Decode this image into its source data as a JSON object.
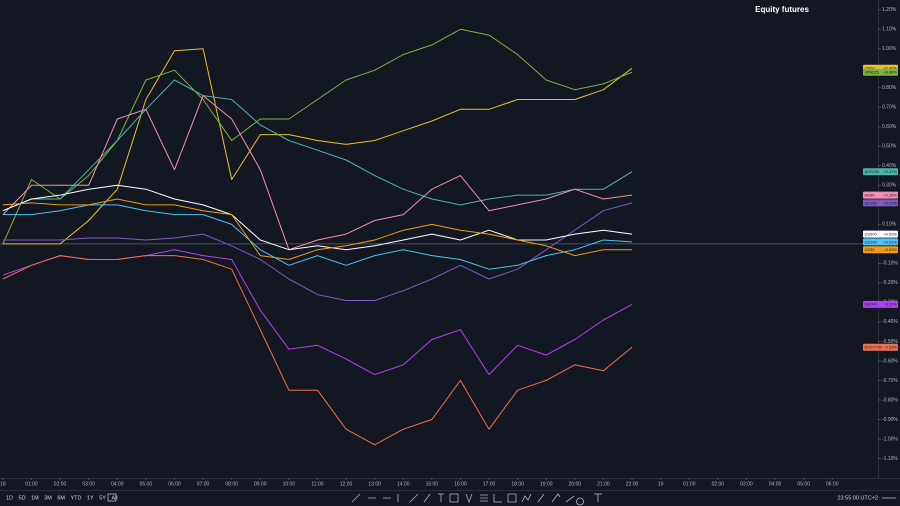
{
  "chart_data": {
    "type": "line",
    "title": "Equity futures",
    "x": [
      0,
      1,
      2,
      3,
      4,
      5,
      6,
      7,
      8,
      9,
      10,
      11,
      12,
      13,
      14,
      15,
      16,
      17,
      18,
      19,
      20,
      21,
      22
    ],
    "xlim": [
      -0.1,
      30.6
    ],
    "xticks": [
      {
        "value": 0,
        "label": "18"
      },
      {
        "value": 1,
        "label": "01:00"
      },
      {
        "value": 2,
        "label": "02:00"
      },
      {
        "value": 3,
        "label": "03:00"
      },
      {
        "value": 4,
        "label": "04:00"
      },
      {
        "value": 5,
        "label": "05:00"
      },
      {
        "value": 6,
        "label": "06:00"
      },
      {
        "value": 7,
        "label": "07:00"
      },
      {
        "value": 8,
        "label": "08:00"
      },
      {
        "value": 9,
        "label": "09:00"
      },
      {
        "value": 10,
        "label": "10:00"
      },
      {
        "value": 11,
        "label": "11:00"
      },
      {
        "value": 12,
        "label": "12:00"
      },
      {
        "value": 13,
        "label": "13:00"
      },
      {
        "value": 14,
        "label": "14:00"
      },
      {
        "value": 15,
        "label": "15:00"
      },
      {
        "value": 16,
        "label": "16:00"
      },
      {
        "value": 17,
        "label": "17:00"
      },
      {
        "value": 18,
        "label": "18:00"
      },
      {
        "value": 19,
        "label": "19:00"
      },
      {
        "value": 20,
        "label": "20:00"
      },
      {
        "value": 21,
        "label": "21:00"
      },
      {
        "value": 22,
        "label": "22:00"
      },
      {
        "value": 23,
        "label": "19"
      },
      {
        "value": 24,
        "label": "01:00"
      },
      {
        "value": 25,
        "label": "02:00"
      },
      {
        "value": 26,
        "label": "03:00"
      },
      {
        "value": 27,
        "label": "04:00"
      },
      {
        "value": 28,
        "label": "05:00"
      },
      {
        "value": 29,
        "label": "06:00"
      }
    ],
    "ylim": [
      -1.2,
      1.25
    ],
    "yticks": [
      {
        "value": 1.2,
        "label": "1.20%"
      },
      {
        "value": 1.1,
        "label": "1.10%"
      },
      {
        "value": 1.0,
        "label": "1.00%"
      },
      {
        "value": 0.9,
        "label": "0.90%"
      },
      {
        "value": 0.8,
        "label": "0.80%"
      },
      {
        "value": 0.7,
        "label": "0.70%"
      },
      {
        "value": 0.6,
        "label": "0.60%"
      },
      {
        "value": 0.5,
        "label": "0.50%"
      },
      {
        "value": 0.4,
        "label": "0.40%"
      },
      {
        "value": 0.3,
        "label": "0.30%"
      },
      {
        "value": 0.2,
        "label": "0.20%"
      },
      {
        "value": 0.1,
        "label": "0.10%"
      },
      {
        "value": 0,
        "label": "0.00%"
      },
      {
        "value": -0.1,
        "label": "-0.10%"
      },
      {
        "value": -0.2,
        "label": "-0.20%"
      },
      {
        "value": -0.3,
        "label": "-0.30%"
      },
      {
        "value": -0.4,
        "label": "-0.40%"
      },
      {
        "value": -0.5,
        "label": "-0.50%"
      },
      {
        "value": -0.6,
        "label": "-0.60%"
      },
      {
        "value": -0.7,
        "label": "-0.70%"
      },
      {
        "value": -0.8,
        "label": "-0.80%"
      },
      {
        "value": -0.9,
        "label": "-0.90%"
      },
      {
        "value": -1.0,
        "label": "-1.00%"
      },
      {
        "value": -1.1,
        "label": "-1.10%"
      }
    ],
    "zero_line": true,
    "series": [
      {
        "name": "CN50",
        "color": "#e8c22c",
        "values": [
          0,
          0,
          0,
          0.12,
          0.28,
          0.74,
          0.99,
          1.0,
          0.33,
          0.56,
          0.56,
          0.53,
          0.51,
          0.53,
          0.58,
          0.63,
          0.69,
          0.69,
          0.74,
          0.74,
          0.74,
          0.79,
          0.9
        ],
        "value_labels": [
          null,
          null,
          null,
          null,
          null,
          null,
          null,
          null,
          null,
          null,
          null,
          null,
          null,
          null,
          null,
          null,
          null,
          null,
          null,
          null,
          null,
          null,
          "+0.90%"
        ]
      },
      {
        "name": "JPN225",
        "color": "#7cb342",
        "values": [
          0,
          0.33,
          0.23,
          0.35,
          0.53,
          0.84,
          0.89,
          0.74,
          0.53,
          0.64,
          0.64,
          0.74,
          0.84,
          0.89,
          0.97,
          1.02,
          1.1,
          1.07,
          0.97,
          0.84,
          0.79,
          0.82,
          0.88
        ],
        "value_labels": [
          null,
          null,
          null,
          null,
          null,
          null,
          null,
          null,
          null,
          null,
          null,
          null,
          null,
          null,
          null,
          null,
          null,
          null,
          null,
          null,
          null,
          null,
          "+0.88%"
        ]
      },
      {
        "name": "AUS200",
        "color": "#4db6ac",
        "values": [
          0.17,
          0.23,
          0.23,
          0.38,
          0.53,
          0.69,
          0.84,
          0.76,
          0.74,
          0.61,
          0.53,
          0.48,
          0.43,
          0.35,
          0.28,
          0.23,
          0.2,
          0.23,
          0.25,
          0.25,
          0.28,
          0.28,
          0.37
        ],
        "value_labels": [
          null,
          null,
          null,
          null,
          null,
          null,
          null,
          null,
          null,
          null,
          null,
          null,
          null,
          null,
          null,
          null,
          null,
          null,
          null,
          null,
          null,
          null,
          "+0.37%"
        ]
      },
      {
        "name": "UK100",
        "color": "#7e57c2",
        "values": [
          0.02,
          0.02,
          0.02,
          0.03,
          0.03,
          0.02,
          0.03,
          0.05,
          -0.01,
          -0.08,
          -0.18,
          -0.26,
          -0.29,
          -0.29,
          -0.24,
          -0.18,
          -0.11,
          -0.18,
          -0.13,
          -0.03,
          0.07,
          0.17,
          0.21
        ],
        "value_labels": [
          null,
          null,
          null,
          null,
          null,
          null,
          null,
          null,
          null,
          null,
          null,
          null,
          null,
          null,
          null,
          null,
          null,
          null,
          null,
          null,
          null,
          null,
          "+0.21%"
        ]
      },
      {
        "name": "HK50",
        "color": "#f48fb1",
        "values": [
          0.15,
          0.3,
          0.3,
          0.3,
          0.64,
          0.69,
          0.38,
          0.76,
          0.64,
          0.38,
          -0.03,
          0.02,
          0.05,
          0.12,
          0.15,
          0.28,
          0.35,
          0.17,
          0.2,
          0.23,
          0.28,
          0.23,
          0.25
        ],
        "value_labels": [
          null,
          null,
          null,
          null,
          null,
          null,
          null,
          null,
          null,
          null,
          null,
          null,
          null,
          null,
          null,
          null,
          null,
          null,
          null,
          null,
          null,
          null,
          "+0.25%"
        ]
      },
      {
        "name": "US500",
        "color": "#ffffff",
        "values": [
          0.17,
          0.23,
          0.25,
          0.28,
          0.3,
          0.28,
          0.23,
          0.2,
          0.15,
          0.02,
          -0.03,
          -0.01,
          -0.03,
          -0.01,
          0.02,
          0.05,
          0.02,
          0.07,
          0.02,
          0.02,
          0.05,
          0.07,
          0.05
        ],
        "value_labels": [
          null,
          null,
          null,
          null,
          null,
          null,
          null,
          null,
          null,
          null,
          null,
          null,
          null,
          null,
          null,
          null,
          null,
          null,
          null,
          null,
          null,
          null,
          "+0.05%"
        ]
      },
      {
        "name": "US100",
        "color": "#4fc3f7",
        "values": [
          0.15,
          0.15,
          0.17,
          0.2,
          0.2,
          0.17,
          0.15,
          0.15,
          0.1,
          -0.03,
          -0.11,
          -0.06,
          -0.11,
          -0.06,
          -0.03,
          -0.06,
          -0.08,
          -0.13,
          -0.11,
          -0.06,
          -0.03,
          0.02,
          0.01
        ],
        "value_labels": [
          null,
          null,
          null,
          null,
          null,
          null,
          null,
          null,
          null,
          null,
          null,
          null,
          null,
          null,
          null,
          null,
          null,
          null,
          null,
          null,
          null,
          null,
          "+0.01%"
        ]
      },
      {
        "name": "US30",
        "color": "#f39c12",
        "values": [
          0.2,
          0.21,
          0.2,
          0.2,
          0.23,
          0.2,
          0.2,
          0.17,
          0.15,
          -0.06,
          -0.08,
          -0.03,
          -0.01,
          0.02,
          0.07,
          0.1,
          0.07,
          0.05,
          0.02,
          -0.01,
          -0.06,
          -0.03,
          -0.03
        ],
        "value_labels": [
          null,
          null,
          null,
          null,
          null,
          null,
          null,
          null,
          null,
          null,
          null,
          null,
          null,
          null,
          null,
          null,
          null,
          null,
          null,
          null,
          null,
          null,
          "-0.03%"
        ]
      },
      {
        "name": "GER40",
        "color": "#b040f0",
        "values": [
          -0.16,
          -0.11,
          -0.06,
          -0.08,
          -0.08,
          -0.06,
          -0.03,
          -0.06,
          -0.08,
          -0.34,
          -0.54,
          -0.52,
          -0.59,
          -0.67,
          -0.62,
          -0.49,
          -0.44,
          -0.67,
          -0.52,
          -0.57,
          -0.49,
          -0.39,
          -0.31
        ],
        "value_labels": [
          null,
          null,
          null,
          null,
          null,
          null,
          null,
          null,
          null,
          null,
          null,
          null,
          null,
          null,
          null,
          null,
          null,
          null,
          null,
          null,
          null,
          null,
          "-0.31%"
        ]
      },
      {
        "name": "EUSTX50",
        "color": "#f0704f",
        "values": [
          -0.18,
          -0.11,
          -0.06,
          -0.08,
          -0.08,
          -0.06,
          -0.06,
          -0.08,
          -0.13,
          -0.44,
          -0.75,
          -0.75,
          -0.95,
          -1.03,
          -0.95,
          -0.9,
          -0.7,
          -0.95,
          -0.75,
          -0.7,
          -0.62,
          -0.65,
          -0.53
        ],
        "value_labels": [
          null,
          null,
          null,
          null,
          null,
          null,
          null,
          null,
          null,
          null,
          null,
          null,
          null,
          null,
          null,
          null,
          null,
          null,
          null,
          null,
          null,
          null,
          "-0.53%"
        ]
      }
    ]
  },
  "toolbar": {
    "ranges": [
      "1D",
      "5D",
      "1M",
      "3M",
      "6M",
      "YTD",
      "1Y",
      "5Y",
      "All"
    ],
    "time": "23:55:00 UTC+2"
  }
}
